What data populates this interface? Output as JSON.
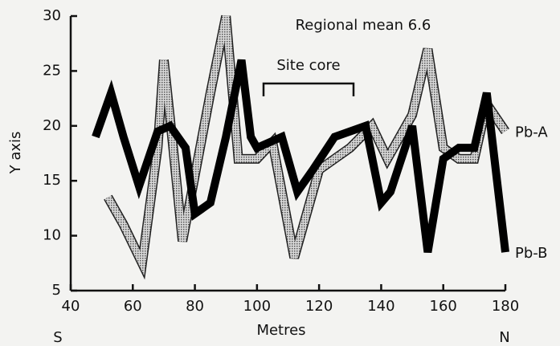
{
  "chart_data": {
    "type": "line",
    "annotations": [
      "Regional mean 6.6",
      "Site core"
    ],
    "xlabel": "Metres",
    "ylabel": "Y axis",
    "direction_labels": [
      "S",
      "N"
    ],
    "xlim": [
      40,
      180
    ],
    "xticks": [
      40,
      60,
      80,
      100,
      120,
      140,
      160,
      180
    ],
    "ylim": [
      5,
      30
    ],
    "yticks": [
      5,
      10,
      15,
      20,
      25,
      30
    ],
    "series": [
      {
        "name": "Pb-A",
        "color": "#8a8a8a",
        "style": "stippled",
        "x": [
          52,
          57,
          63,
          68,
          70,
          73,
          76,
          79,
          85,
          90,
          94,
          100,
          105,
          112,
          120,
          130,
          137,
          142,
          150,
          155,
          160,
          165,
          170,
          174,
          180
        ],
        "values": [
          13.5,
          11,
          7.5,
          18,
          26,
          18,
          9.5,
          14,
          23,
          30,
          17,
          17,
          18.5,
          8,
          16,
          18,
          20,
          17,
          21,
          27,
          18,
          17,
          17,
          22,
          19.5
        ]
      },
      {
        "name": "Pb-B",
        "color": "#000000",
        "style": "solid",
        "x": [
          48,
          53,
          57,
          62,
          68,
          72,
          77,
          80,
          85,
          90,
          95,
          98,
          100,
          108,
          113,
          118,
          125,
          135,
          140,
          143,
          150,
          155,
          160,
          165,
          170,
          174,
          180
        ],
        "values": [
          19,
          23,
          19,
          14.5,
          19.5,
          20,
          18,
          12,
          13,
          19,
          26,
          19,
          18,
          19,
          14,
          16,
          19,
          20,
          13,
          14,
          20,
          8.5,
          17,
          18,
          18,
          23,
          8.5
        ]
      }
    ]
  }
}
